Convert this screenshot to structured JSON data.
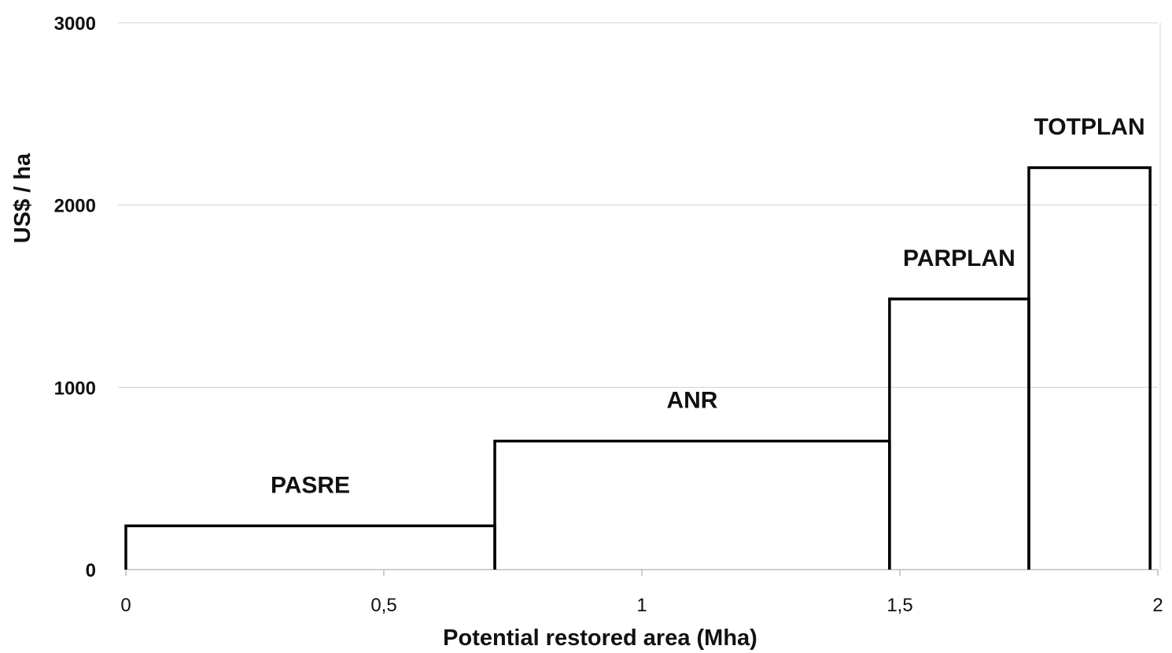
{
  "chart_data": {
    "type": "bar",
    "xlabel": "Potential restored area (Mha)",
    "ylabel": "US$ / ha",
    "xlim": [
      0,
      2
    ],
    "ylim": [
      0,
      3000
    ],
    "grid": true,
    "x_ticks": [
      "0",
      "0,5",
      "1",
      "1,5",
      "2"
    ],
    "y_ticks": [
      "0",
      "1000",
      "2000",
      "3000"
    ],
    "bars": [
      {
        "label": "PASRE",
        "x_start": 0,
        "x_end": 0.715,
        "value": 240
      },
      {
        "label": "ANR",
        "x_start": 0.715,
        "x_end": 1.48,
        "value": 705
      },
      {
        "label": "PARPLAN",
        "x_start": 1.48,
        "x_end": 1.75,
        "value": 1485
      },
      {
        "label": "TOTPLAN",
        "x_start": 1.75,
        "x_end": 1.985,
        "value": 2205
      }
    ]
  }
}
